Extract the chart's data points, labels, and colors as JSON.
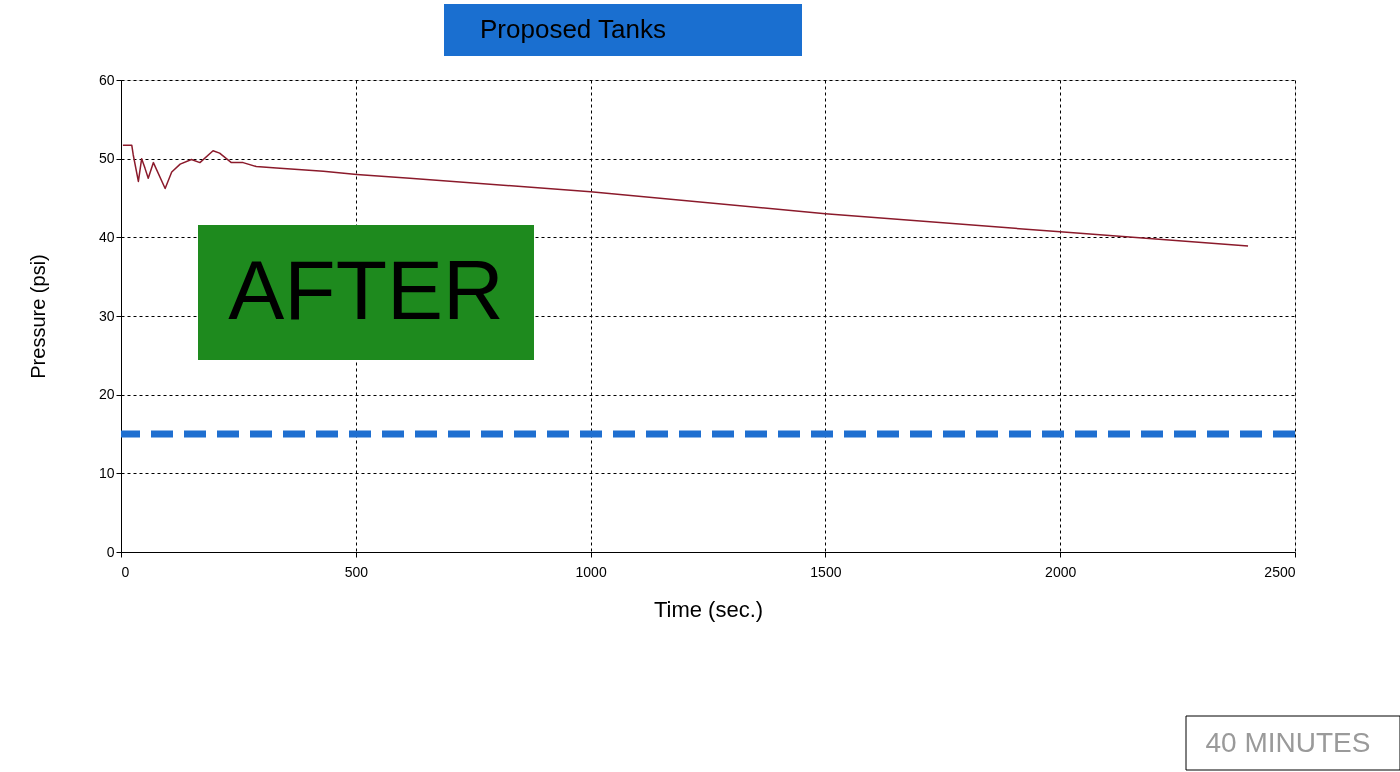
{
  "chart_data": {
    "type": "line",
    "title": "Proposed Tanks",
    "xlabel": "Time (sec.)",
    "ylabel": "Pressure (psi)",
    "x": [
      4,
      23,
      26,
      37,
      44,
      51,
      58,
      69,
      94,
      108,
      126,
      150,
      168,
      196,
      210,
      235,
      260,
      288,
      331,
      431,
      502,
      615,
      1000,
      1500,
      2000,
      2400
    ],
    "series": [
      {
        "color": "#8b1a2b",
        "values": [
          51.7,
          51.7,
          50.5,
          47.1,
          50.0,
          48.8,
          47.5,
          49.5,
          46.2,
          48.3,
          49.3,
          49.9,
          49.5,
          51.0,
          50.7,
          49.5,
          49.5,
          49.0,
          48.8,
          48.4,
          48.0,
          47.5,
          45.8,
          43.0,
          40.7,
          38.9
        ]
      }
    ],
    "xlim": [
      0,
      2500
    ],
    "xticks": [
      0,
      500,
      1000,
      1500,
      2000,
      2500
    ],
    "ylim": [
      0,
      60
    ],
    "yticks": [
      0,
      10,
      20,
      30,
      40,
      50,
      60
    ],
    "grid": true,
    "marker": "none",
    "line_style": "solid",
    "ref_lines": [
      {
        "axis": "y",
        "value": 15,
        "color": "#1f6fd0",
        "line_style": "dashed"
      }
    ],
    "annotations": [
      "AFTER",
      "40 MINUTES"
    ]
  }
}
